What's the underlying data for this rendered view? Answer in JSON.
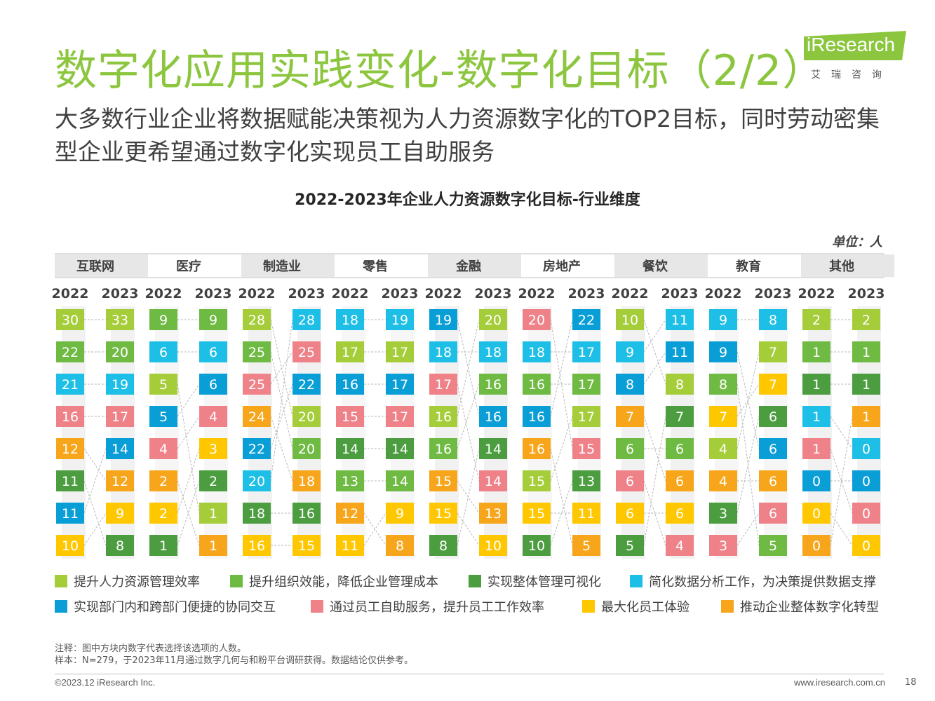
{
  "header": {
    "title": "数字化应用实践变化-数字化目标（2/2）",
    "subtitle": "大多数行业企业将数据赋能决策视为人力资源数字化的TOP2目标，同时劳动密集型企业更希望通过数字化实现员工自助服务"
  },
  "logo": {
    "text": "iResearch",
    "cn": "艾瑞咨询",
    "color": "#8cc63f"
  },
  "chart_data": {
    "type": "table",
    "title": "2022-2023年企业人力资源数字化目标-行业维度",
    "unit_label": "单位：人",
    "categories": [
      {
        "name": "提升人力资源管理效率",
        "color": "#a5cd39"
      },
      {
        "name": "提升组织效能，降低企业管理成本",
        "color": "#6fba43"
      },
      {
        "name": "实现整体管理可视化",
        "color": "#4b9d3f"
      },
      {
        "name": "简化数据分析工作，为决策提供数据支撑",
        "color": "#1dbfe6"
      },
      {
        "name": "实现部门内和跨部门便捷的协同交互",
        "color": "#0a9ed6"
      },
      {
        "name": "通过员工自助服务，提升员工工作效率",
        "color": "#ef8289"
      },
      {
        "name": "最大化员工体验",
        "color": "#ffc700"
      },
      {
        "name": "推动企业整体数字化转型",
        "color": "#f7a51a"
      }
    ],
    "years": [
      "2022",
      "2023"
    ],
    "industries": [
      {
        "name": "互联网",
        "y2022": [
          {
            "v": 30,
            "c": 0
          },
          {
            "v": 22,
            "c": 1
          },
          {
            "v": 21,
            "c": 3
          },
          {
            "v": 16,
            "c": 5
          },
          {
            "v": 12,
            "c": 7
          },
          {
            "v": 11,
            "c": 2
          },
          {
            "v": 11,
            "c": 4
          },
          {
            "v": 10,
            "c": 6
          }
        ],
        "y2023": [
          {
            "v": 33,
            "c": 0
          },
          {
            "v": 20,
            "c": 1
          },
          {
            "v": 19,
            "c": 3
          },
          {
            "v": 17,
            "c": 5
          },
          {
            "v": 14,
            "c": 4
          },
          {
            "v": 12,
            "c": 7
          },
          {
            "v": 9,
            "c": 6
          },
          {
            "v": 8,
            "c": 2
          }
        ]
      },
      {
        "name": "医疗",
        "y2022": [
          {
            "v": 9,
            "c": 1
          },
          {
            "v": 6,
            "c": 3
          },
          {
            "v": 5,
            "c": 0
          },
          {
            "v": 5,
            "c": 4
          },
          {
            "v": 4,
            "c": 5
          },
          {
            "v": 2,
            "c": 7
          },
          {
            "v": 2,
            "c": 6
          },
          {
            "v": 1,
            "c": 2
          }
        ],
        "y2023": [
          {
            "v": 9,
            "c": 1
          },
          {
            "v": 6,
            "c": 3
          },
          {
            "v": 6,
            "c": 4
          },
          {
            "v": 4,
            "c": 5
          },
          {
            "v": 3,
            "c": 6
          },
          {
            "v": 2,
            "c": 2
          },
          {
            "v": 1,
            "c": 0
          },
          {
            "v": 1,
            "c": 7
          }
        ]
      },
      {
        "name": "制造业",
        "y2022": [
          {
            "v": 28,
            "c": 0
          },
          {
            "v": 25,
            "c": 1
          },
          {
            "v": 25,
            "c": 5
          },
          {
            "v": 24,
            "c": 7
          },
          {
            "v": 22,
            "c": 4
          },
          {
            "v": 20,
            "c": 3
          },
          {
            "v": 18,
            "c": 2
          },
          {
            "v": 16,
            "c": 6
          }
        ],
        "y2023": [
          {
            "v": 28,
            "c": 3
          },
          {
            "v": 25,
            "c": 5
          },
          {
            "v": 22,
            "c": 4
          },
          {
            "v": 20,
            "c": 0
          },
          {
            "v": 20,
            "c": 1
          },
          {
            "v": 18,
            "c": 7
          },
          {
            "v": 16,
            "c": 2
          },
          {
            "v": 15,
            "c": 6
          }
        ]
      },
      {
        "name": "零售",
        "y2022": [
          {
            "v": 18,
            "c": 3
          },
          {
            "v": 17,
            "c": 0
          },
          {
            "v": 16,
            "c": 4
          },
          {
            "v": 15,
            "c": 5
          },
          {
            "v": 14,
            "c": 2
          },
          {
            "v": 13,
            "c": 1
          },
          {
            "v": 12,
            "c": 7
          },
          {
            "v": 11,
            "c": 6
          }
        ],
        "y2023": [
          {
            "v": 19,
            "c": 3
          },
          {
            "v": 17,
            "c": 0
          },
          {
            "v": 17,
            "c": 4
          },
          {
            "v": 17,
            "c": 5
          },
          {
            "v": 14,
            "c": 2
          },
          {
            "v": 14,
            "c": 1
          },
          {
            "v": 9,
            "c": 6
          },
          {
            "v": 8,
            "c": 7
          }
        ]
      },
      {
        "name": "金融",
        "y2022": [
          {
            "v": 19,
            "c": 4
          },
          {
            "v": 18,
            "c": 3
          },
          {
            "v": 17,
            "c": 5
          },
          {
            "v": 16,
            "c": 0
          },
          {
            "v": 16,
            "c": 1
          },
          {
            "v": 15,
            "c": 7
          },
          {
            "v": 15,
            "c": 6
          },
          {
            "v": 8,
            "c": 2
          }
        ],
        "y2023": [
          {
            "v": 20,
            "c": 0
          },
          {
            "v": 18,
            "c": 3
          },
          {
            "v": 16,
            "c": 1
          },
          {
            "v": 16,
            "c": 4
          },
          {
            "v": 14,
            "c": 2
          },
          {
            "v": 14,
            "c": 5
          },
          {
            "v": 13,
            "c": 7
          },
          {
            "v": 10,
            "c": 6
          }
        ]
      },
      {
        "name": "房地产",
        "y2022": [
          {
            "v": 20,
            "c": 5
          },
          {
            "v": 18,
            "c": 3
          },
          {
            "v": 16,
            "c": 1
          },
          {
            "v": 16,
            "c": 4
          },
          {
            "v": 16,
            "c": 7
          },
          {
            "v": 15,
            "c": 0
          },
          {
            "v": 15,
            "c": 6
          },
          {
            "v": 10,
            "c": 2
          }
        ],
        "y2023": [
          {
            "v": 22,
            "c": 4
          },
          {
            "v": 17,
            "c": 3
          },
          {
            "v": 17,
            "c": 1
          },
          {
            "v": 17,
            "c": 0
          },
          {
            "v": 15,
            "c": 5
          },
          {
            "v": 13,
            "c": 2
          },
          {
            "v": 11,
            "c": 6
          },
          {
            "v": 5,
            "c": 7
          }
        ]
      },
      {
        "name": "餐饮",
        "y2022": [
          {
            "v": 10,
            "c": 0
          },
          {
            "v": 9,
            "c": 3
          },
          {
            "v": 8,
            "c": 4
          },
          {
            "v": 7,
            "c": 7
          },
          {
            "v": 6,
            "c": 1
          },
          {
            "v": 6,
            "c": 5
          },
          {
            "v": 6,
            "c": 6
          },
          {
            "v": 5,
            "c": 2
          }
        ],
        "y2023": [
          {
            "v": 11,
            "c": 3
          },
          {
            "v": 11,
            "c": 4
          },
          {
            "v": 8,
            "c": 0
          },
          {
            "v": 7,
            "c": 2
          },
          {
            "v": 6,
            "c": 1
          },
          {
            "v": 6,
            "c": 7
          },
          {
            "v": 6,
            "c": 6
          },
          {
            "v": 4,
            "c": 5
          }
        ]
      },
      {
        "name": "教育",
        "y2022": [
          {
            "v": 9,
            "c": 3
          },
          {
            "v": 9,
            "c": 4
          },
          {
            "v": 8,
            "c": 1
          },
          {
            "v": 7,
            "c": 6
          },
          {
            "v": 4,
            "c": 0
          },
          {
            "v": 4,
            "c": 7
          },
          {
            "v": 3,
            "c": 2
          },
          {
            "v": 3,
            "c": 5
          }
        ],
        "y2023": [
          {
            "v": 8,
            "c": 3
          },
          {
            "v": 7,
            "c": 0
          },
          {
            "v": 7,
            "c": 6
          },
          {
            "v": 6,
            "c": 2
          },
          {
            "v": 6,
            "c": 4
          },
          {
            "v": 6,
            "c": 7
          },
          {
            "v": 6,
            "c": 5
          },
          {
            "v": 5,
            "c": 1
          }
        ]
      },
      {
        "name": "其他",
        "y2022": [
          {
            "v": 2,
            "c": 0
          },
          {
            "v": 1,
            "c": 1
          },
          {
            "v": 1,
            "c": 2
          },
          {
            "v": 1,
            "c": 3
          },
          {
            "v": 1,
            "c": 5
          },
          {
            "v": 0,
            "c": 4
          },
          {
            "v": 0,
            "c": 6
          },
          {
            "v": 0,
            "c": 7
          }
        ],
        "y2023": [
          {
            "v": 2,
            "c": 0
          },
          {
            "v": 1,
            "c": 1
          },
          {
            "v": 1,
            "c": 2
          },
          {
            "v": 1,
            "c": 7
          },
          {
            "v": 0,
            "c": 3
          },
          {
            "v": 0,
            "c": 4
          },
          {
            "v": 0,
            "c": 5
          },
          {
            "v": 0,
            "c": 6
          }
        ]
      }
    ]
  },
  "notes": {
    "line1": "注释：图中方块内数字代表选择该选项的人数。",
    "line2": "样本：N=279，于2023年11月通过数字几何与和粉平台调研获得。数据结论仅供参考。"
  },
  "footer": {
    "copyright": "©2023.12 iResearch Inc.",
    "url": "www.iresearch.com.cn",
    "page": "18"
  }
}
